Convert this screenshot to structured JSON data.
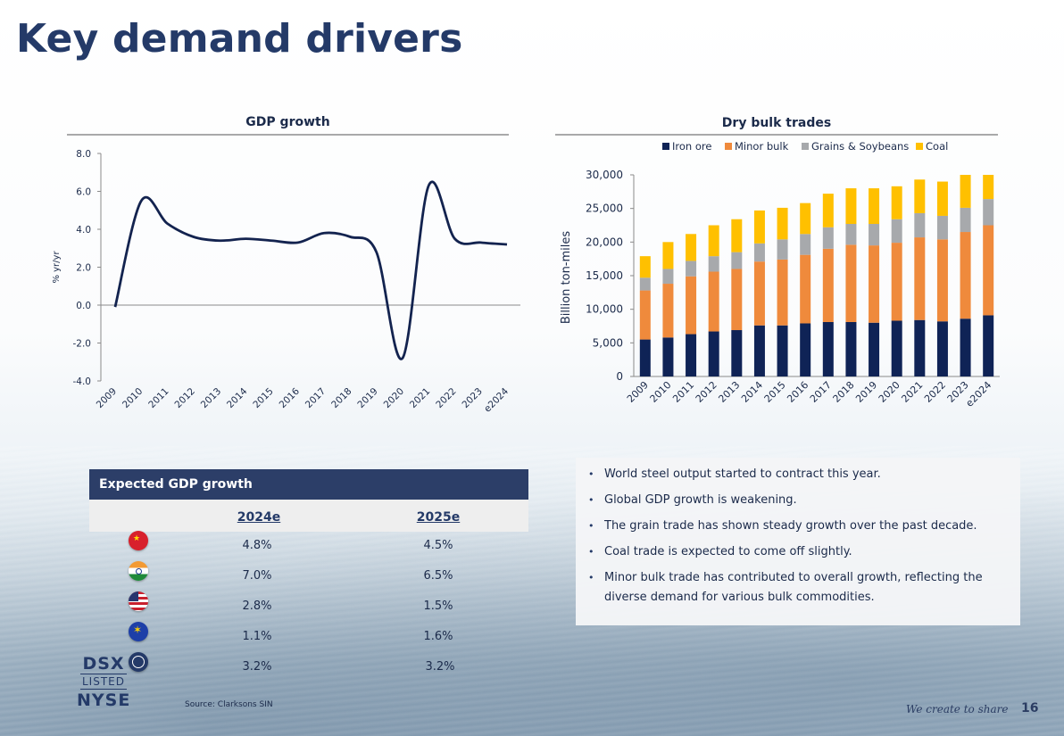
{
  "page": {
    "title": "Key demand drivers",
    "page_number": "16",
    "tagline": "We create to share"
  },
  "gdp_chart_title": "GDP growth",
  "dry_bulk_title": "Dry bulk trades",
  "chart_data": [
    {
      "type": "line",
      "title": "GDP growth",
      "ylabel": "% yr/yr",
      "xlabel": "",
      "ylim": [
        -4.0,
        8.0
      ],
      "yticks": [
        "8.0",
        "6.0",
        "4.0",
        "2.0",
        "0.0",
        "-2.0",
        "-4.0"
      ],
      "x": [
        "2009",
        "2010",
        "2011",
        "2012",
        "2013",
        "2014",
        "2015",
        "2016",
        "2017",
        "2018",
        "2019",
        "2020",
        "2021",
        "2022",
        "2023",
        "e2024"
      ],
      "values": [
        -0.1,
        5.5,
        4.3,
        3.6,
        3.4,
        3.5,
        3.4,
        3.3,
        3.8,
        3.6,
        2.8,
        -2.8,
        6.3,
        3.5,
        3.3,
        3.2
      ]
    },
    {
      "type": "bar",
      "stacked": true,
      "title": "Dry bulk trades",
      "ylabel": "Billion ton-miles",
      "xlabel": "",
      "ylim": [
        0,
        30000
      ],
      "yticks": [
        "30,000",
        "25,000",
        "20,000",
        "15,000",
        "10,000",
        "5,000",
        "0"
      ],
      "legend_position": "top",
      "categories": [
        "2009",
        "2010",
        "2011",
        "2012",
        "2013",
        "2014",
        "2015",
        "2016",
        "2017",
        "2018",
        "2019",
        "2020",
        "2021",
        "2022",
        "2023",
        "e2024"
      ],
      "series": [
        {
          "name": "Iron ore",
          "color": "#0f2356",
          "values": [
            5500,
            5800,
            6300,
            6700,
            6900,
            7600,
            7600,
            7900,
            8100,
            8100,
            8000,
            8300,
            8400,
            8200,
            8600,
            9100
          ]
        },
        {
          "name": "Minor bulk",
          "color": "#ef8a3c",
          "values": [
            7300,
            8000,
            8600,
            8900,
            9100,
            9500,
            9800,
            10200,
            10900,
            11500,
            11500,
            11600,
            12300,
            12200,
            12900,
            13400
          ]
        },
        {
          "name": "Grains & Soybeans",
          "color": "#a7a9ac",
          "values": [
            1900,
            2200,
            2300,
            2300,
            2500,
            2700,
            3000,
            3100,
            3200,
            3100,
            3200,
            3500,
            3600,
            3500,
            3600,
            3900
          ]
        },
        {
          "name": "Coal",
          "color": "#ffc000",
          "values": [
            3200,
            4000,
            4000,
            4600,
            4900,
            4900,
            4700,
            4600,
            5000,
            5300,
            5300,
            4900,
            5000,
            5100,
            4900,
            3600
          ]
        }
      ]
    }
  ],
  "gdp_table": {
    "title": "Expected GDP growth",
    "columns": [
      "2024e",
      "2025e"
    ],
    "rows": [
      {
        "region_icon": "china-flag-icon",
        "v2024": "4.8%",
        "v2025": "4.5%"
      },
      {
        "region_icon": "india-flag-icon",
        "v2024": "7.0%",
        "v2025": "6.5%"
      },
      {
        "region_icon": "us-flag-icon",
        "v2024": "2.8%",
        "v2025": "1.5%"
      },
      {
        "region_icon": "eu-flag-icon",
        "v2024": "1.1%",
        "v2025": "1.6%"
      },
      {
        "region_icon": "globe-icon",
        "v2024": "3.2%",
        "v2025": "3.2%"
      }
    ]
  },
  "bullets": [
    "World steel output started to contract this year.",
    "Global GDP growth is weakening.",
    "The grain trade has shown steady growth over the past decade.",
    "Coal trade is expected to come off slightly.",
    "Minor bulk trade has contributed to overall growth, reflecting the diverse demand for various bulk commodities."
  ],
  "logo": {
    "line1": "DSX",
    "line2": "LISTED",
    "line3": "NYSE"
  },
  "source": "Source: Clarksons SIN"
}
